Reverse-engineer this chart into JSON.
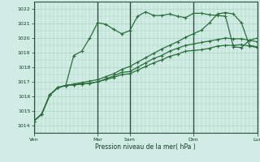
{
  "bg_color": "#d0ece4",
  "grid_color": "#a8d4c4",
  "line_color": "#2d6e3e",
  "marker_color": "#2d6e3e",
  "ylabel_ticks": [
    1014,
    1015,
    1016,
    1017,
    1018,
    1019,
    1020,
    1021,
    1022
  ],
  "ylim": [
    1013.5,
    1022.5
  ],
  "xlabel": "Pression niveau de la mer( hPa )",
  "day_labels": [
    "Ven",
    "Mar",
    "Sam",
    "Dim",
    "Lun"
  ],
  "day_positions": [
    0.0,
    8.0,
    12.0,
    20.0,
    28.0
  ],
  "xlim": [
    0,
    28
  ],
  "series": [
    [
      1014.3,
      1014.8,
      1016.1,
      1016.6,
      1016.75,
      1018.8,
      1019.1,
      1020.0,
      1021.05,
      1020.95,
      1020.6,
      1020.3,
      1020.5,
      1021.5,
      1021.8,
      1021.55,
      1021.55,
      1021.65,
      1021.5,
      1021.4,
      1021.7,
      1021.7,
      1021.6,
      1021.55,
      1021.5,
      1019.4,
      1019.35,
      1019.85,
      1020.0,
      1019.4,
      1019.85,
      1019.35,
      1019.5
    ],
    [
      1014.3,
      1014.8,
      1016.1,
      1016.6,
      1016.75,
      1016.8,
      1016.85,
      1016.9,
      1017.0,
      1017.15,
      1017.3,
      1017.5,
      1017.55,
      1017.8,
      1018.05,
      1018.3,
      1018.5,
      1018.75,
      1018.9,
      1019.1,
      1019.15,
      1019.2,
      1019.3,
      1019.45,
      1019.5,
      1019.5,
      1019.55,
      1019.45,
      1019.35
    ],
    [
      1014.3,
      1014.8,
      1016.1,
      1016.6,
      1016.75,
      1016.8,
      1016.85,
      1016.9,
      1017.0,
      1017.2,
      1017.4,
      1017.65,
      1017.7,
      1018.0,
      1018.3,
      1018.6,
      1018.8,
      1019.1,
      1019.3,
      1019.5,
      1019.6,
      1019.7,
      1019.8,
      1019.9,
      1020.0,
      1019.95,
      1019.95,
      1019.85,
      1019.75
    ],
    [
      1014.3,
      1014.8,
      1016.1,
      1016.6,
      1016.75,
      1016.85,
      1016.95,
      1017.05,
      1017.15,
      1017.35,
      1017.55,
      1017.85,
      1018.05,
      1018.35,
      1018.65,
      1018.95,
      1019.25,
      1019.5,
      1019.75,
      1020.05,
      1020.3,
      1020.55,
      1021.05,
      1021.65,
      1021.75,
      1021.65,
      1021.05,
      1019.5,
      1019.4
    ]
  ]
}
